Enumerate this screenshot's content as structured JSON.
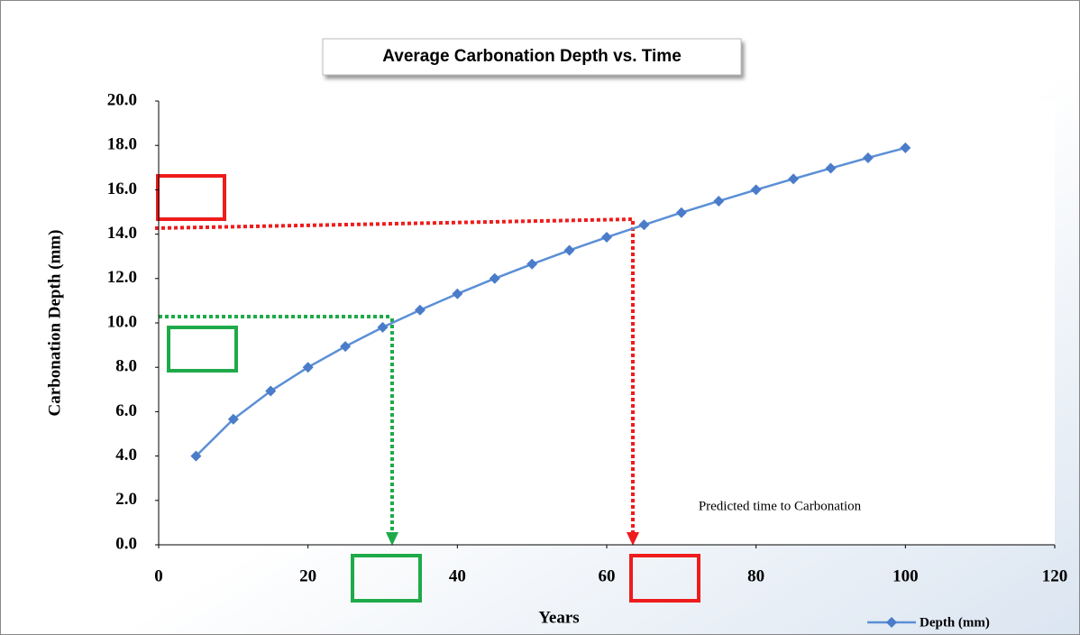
{
  "chart_data": {
    "type": "line",
    "title": "Average Carbonation Depth vs. Time",
    "x_label": "Years",
    "y_label": "Carbonation Depth (mm)",
    "annotation": "Predicted time to Carbonation",
    "x": [
      5,
      10,
      15,
      20,
      25,
      30,
      35,
      40,
      45,
      50,
      55,
      60,
      65,
      70,
      75,
      80,
      85,
      90,
      95,
      100
    ],
    "series": [
      {
        "name": "Depth (mm)",
        "color": "#5b8fd6",
        "values": [
          4.0,
          5.66,
          6.93,
          8.0,
          8.94,
          9.8,
          10.58,
          11.31,
          12.0,
          12.65,
          13.27,
          13.86,
          14.42,
          14.97,
          15.49,
          16.0,
          16.49,
          16.97,
          17.44,
          17.89
        ]
      }
    ],
    "xlim": [
      0,
      120
    ],
    "xticks": [
      0,
      20,
      40,
      60,
      80,
      100,
      120
    ],
    "ylim": [
      0,
      20
    ],
    "yticks": [
      {
        "value": 0,
        "label": "0.0"
      },
      {
        "value": 2,
        "label": "2.0"
      },
      {
        "value": 4,
        "label": "4.0"
      },
      {
        "value": 6,
        "label": "6.0"
      },
      {
        "value": 8,
        "label": "8.0"
      },
      {
        "value": 10,
        "label": "10.0"
      },
      {
        "value": 12,
        "label": "12.0"
      },
      {
        "value": 14,
        "label": "14.0"
      },
      {
        "value": 16,
        "label": "16.0"
      },
      {
        "value": 18,
        "label": "18.0"
      },
      {
        "value": 20,
        "label": "20.0"
      }
    ],
    "legend": "bottom-right"
  }
}
